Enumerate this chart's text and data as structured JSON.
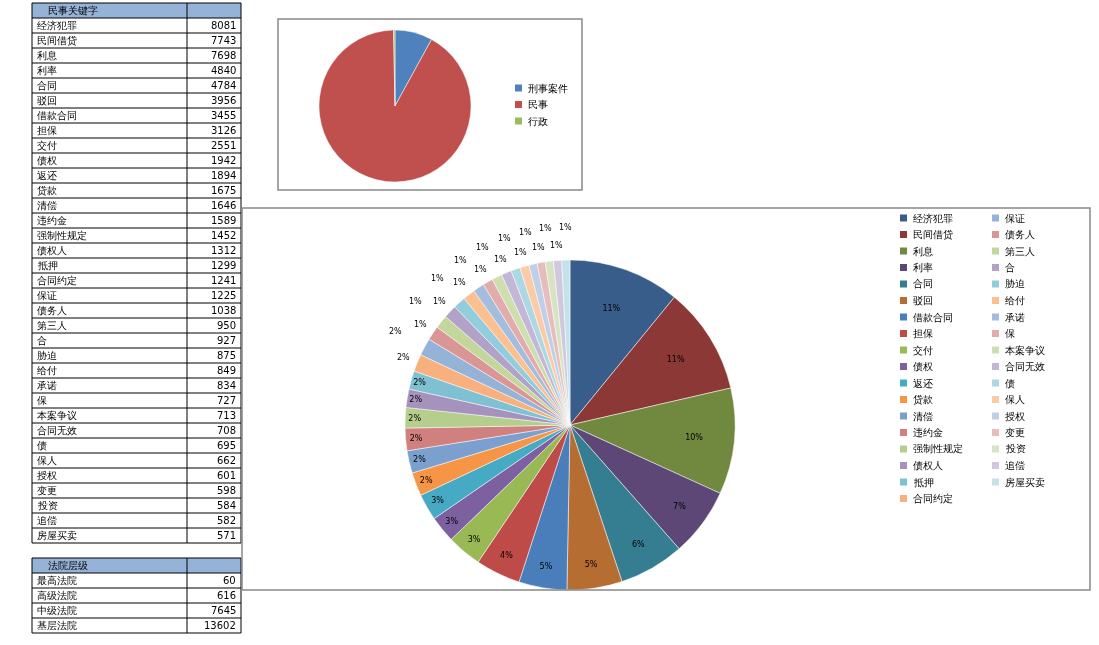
{
  "chart_data": [
    {
      "type": "other",
      "title": "民事关键字",
      "data_labels": true,
      "categories": [
        "经济犯罪",
        "民间借贷",
        "利息",
        "利率",
        "合同",
        "驳回",
        "借款合同",
        "担保",
        "交付",
        "债权",
        "返还",
        "贷款",
        "清偿",
        "违约金",
        "强制性规定",
        "债权人",
        "抵押",
        "合同约定",
        "保证",
        "债务人",
        "第三人",
        "合",
        "胁迫",
        "给付",
        "承诺",
        "保",
        "本案争议",
        "合同无效",
        "债",
        "保人",
        "授权",
        "变更",
        "投资",
        "追偿",
        "房屋买卖"
      ],
      "values": [
        8081,
        7743,
        7698,
        4840,
        4784,
        3956,
        3455,
        3126,
        2551,
        1942,
        1894,
        1675,
        1646,
        1589,
        1452,
        1312,
        1299,
        1241,
        1225,
        1038,
        950,
        927,
        875,
        849,
        834,
        727,
        713,
        708,
        695,
        662,
        601,
        598,
        584,
        582,
        571
      ]
    },
    {
      "type": "other",
      "title": "法院层级",
      "data_labels": true,
      "categories": [
        "最高法院",
        "高级法院",
        "中级法院",
        "基层法院"
      ],
      "values": [
        60,
        616,
        7645,
        13602
      ]
    },
    {
      "type": "pie",
      "legend": "right",
      "categories": [
        "刑事案件",
        "民事",
        "行政"
      ],
      "values": [
        8,
        91.7,
        0.3
      ],
      "colors": [
        "#4f81bd",
        "#c0504d",
        "#9bbb59"
      ]
    },
    {
      "type": "pie",
      "legend": "right",
      "categories": [
        "经济犯罪",
        "民间借贷",
        "利息",
        "利率",
        "合同",
        "驳回",
        "借款合同",
        "担保",
        "交付",
        "债权",
        "返还",
        "贷款",
        "清偿",
        "违约金",
        "强制性规定",
        "债权人",
        "抵押",
        "合同约定",
        "保证",
        "债务人",
        "第三人",
        "合",
        "胁迫",
        "给付",
        "承诺",
        "保",
        "本案争议",
        "合同无效",
        "债",
        "保人",
        "授权",
        "变更",
        "投资",
        "追偿",
        "房屋买卖"
      ],
      "values": [
        10.9,
        10.5,
        10.4,
        6.7,
        6.4,
        5.4,
        4.7,
        4.4,
        3.4,
        2.6,
        2.6,
        2.3,
        2.2,
        2.2,
        2.0,
        1.8,
        1.8,
        1.7,
        1.7,
        1.4,
        1.3,
        1.3,
        1.2,
        1.2,
        1.1,
        1.0,
        1.0,
        1.0,
        0.9,
        0.9,
        0.8,
        0.8,
        0.8,
        0.8,
        0.8
      ],
      "value_labels": [
        "11%",
        "11%",
        "10%",
        "7%",
        "6%",
        "5%",
        "5%",
        "4%",
        "3%",
        "3%",
        "3%",
        "2%",
        "2%",
        "2%",
        "2%",
        "2%",
        "2%",
        "2%",
        "2%",
        "1%",
        "1%",
        "1%",
        "1%",
        "1%",
        "1%",
        "1%",
        "1%",
        "1%",
        "1%",
        "1%",
        "1%",
        "1%",
        "1%",
        "1%",
        "1%"
      ],
      "colors": [
        "#385d8a",
        "#8c3836",
        "#71893f",
        "#5c4776",
        "#357d91",
        "#b66d31",
        "#4a7ebb",
        "#be4b48",
        "#98b954",
        "#7d60a0",
        "#46aac5",
        "#f69545",
        "#7b9fcf",
        "#d0807e",
        "#b5ce8e",
        "#a592bd",
        "#7fc1d3",
        "#f8b07e",
        "#95b3d7",
        "#d99694",
        "#c3d69b",
        "#b3a2c7",
        "#93cddd",
        "#fac090",
        "#a5bddd",
        "#e2acab",
        "#cedeb0",
        "#c3b7d5",
        "#add7e3",
        "#fbcba8",
        "#bfcfe6",
        "#e6bdbc",
        "#d7e4c3",
        "#d0c8de",
        "#c4e2ea"
      ]
    }
  ]
}
